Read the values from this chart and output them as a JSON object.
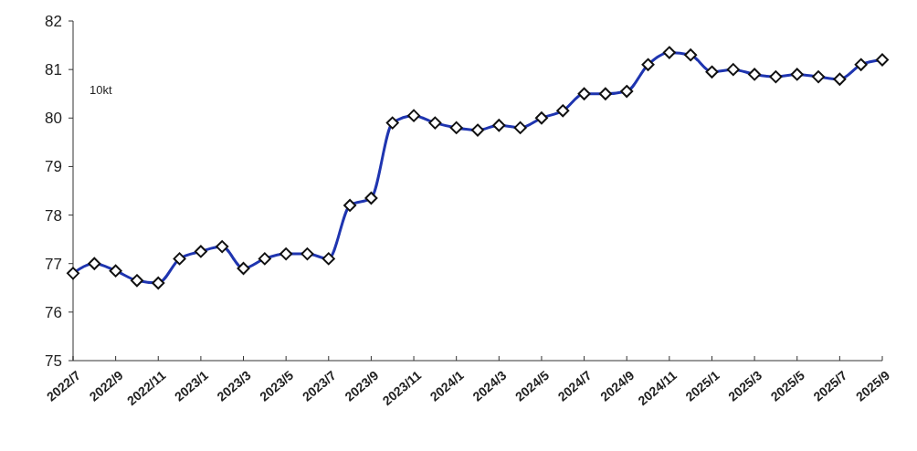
{
  "chart_data": {
    "type": "line",
    "ylabel": "10kt",
    "categories": [
      "2022/7",
      null,
      "2022/9",
      null,
      "2022/11",
      null,
      "2023/1",
      null,
      "2023/3",
      null,
      "2023/5",
      null,
      "2023/7",
      null,
      "2023/9",
      null,
      "2023/11",
      null,
      "2024/1",
      null,
      "2024/3",
      null,
      "2024/5",
      null,
      "2024/7",
      null,
      "2024/9",
      null,
      "2024/11",
      null,
      "2025/1",
      null,
      "2025/3",
      null,
      "2025/5",
      null,
      "2025/7",
      null,
      "2025/9"
    ],
    "series": [
      {
        "color": "#1f35b0",
        "values": [
          76.8,
          77.0,
          76.85,
          76.65,
          76.6,
          77.1,
          77.25,
          77.35,
          76.9,
          77.1,
          77.2,
          77.2,
          77.1,
          78.2,
          78.35,
          79.9,
          80.05,
          79.9,
          79.8,
          79.75,
          79.85,
          79.8,
          80.0,
          80.15,
          80.5,
          80.5,
          80.55,
          81.1,
          81.35,
          81.3,
          80.95,
          81.0,
          80.9,
          80.85,
          80.9,
          80.85,
          80.8,
          81.1,
          81.2
        ]
      }
    ],
    "ylim": [
      75,
      82
    ],
    "yticks": [
      75,
      76,
      77,
      78,
      79,
      80,
      81,
      82
    ],
    "grid": false,
    "marker": "diamond",
    "line_style": "solid"
  }
}
